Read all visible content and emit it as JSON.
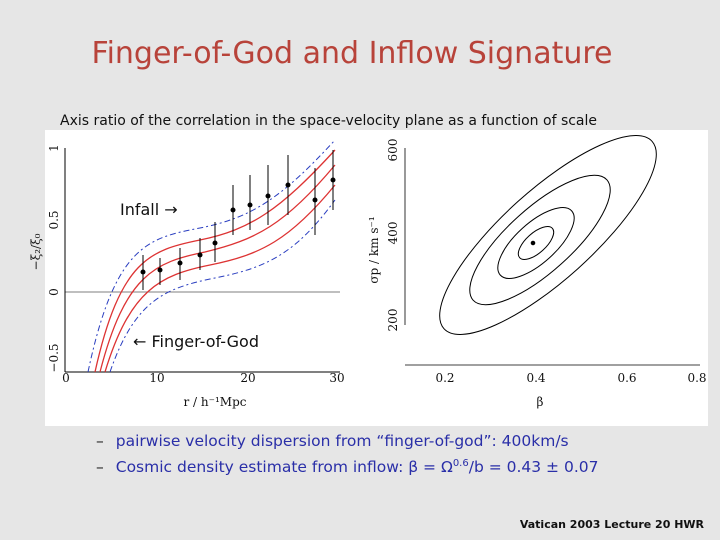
{
  "title": "Finger-of-God and Inflow Signature",
  "caption": "Axis ratio of the correlation in the space-velocity plane as a function of scale",
  "left_plot": {
    "y_label": "−ξ₂/ξ₀",
    "x_label": "r / h⁻¹Mpc",
    "yticks": [
      "1",
      "0.5",
      "0",
      "−0.5"
    ],
    "xticks": [
      "0",
      "10",
      "20",
      "30"
    ],
    "annotations": [
      "Infall →",
      "← Finger-of-God"
    ]
  },
  "right_plot": {
    "y_label": "σp / km s⁻¹",
    "x_label": "β",
    "yticks": [
      "600",
      "400",
      "200"
    ],
    "xticks": [
      "0.2",
      "0.4",
      "0.6",
      "0.8"
    ]
  },
  "bullets": [
    {
      "text": "pairwise velocity dispersion from “finger-of-god”: ",
      "value": "400km/s"
    },
    {
      "text": "Cosmic density estimate from inflow: β = Ω",
      "sup": "0.6",
      "value": "/b = 0.43 ± 0.07"
    }
  ],
  "footer": "Vatican 2003 Lecture 20 HWR"
}
